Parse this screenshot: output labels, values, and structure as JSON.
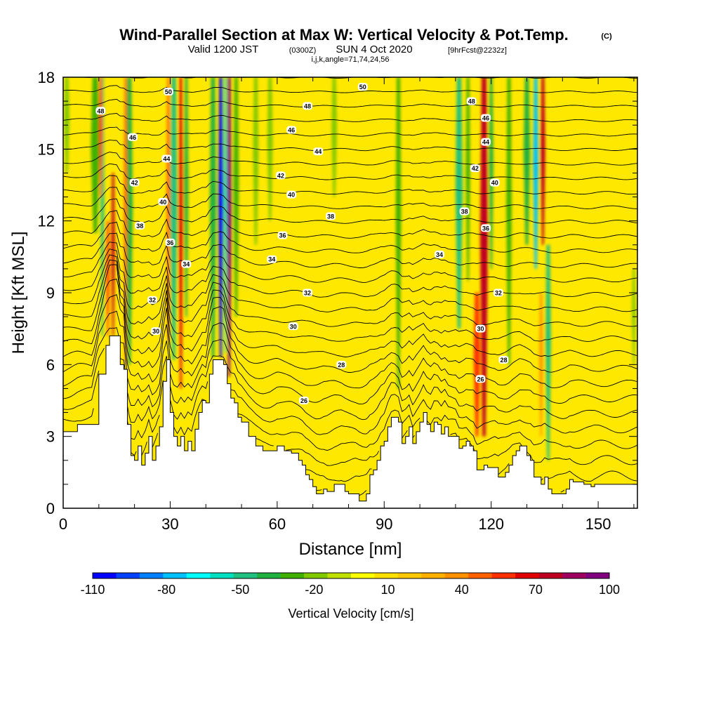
{
  "chart_data": {
    "type": "heatmap",
    "title": "Wind-Parallel Section at Max W: Vertical Velocity & Pot.Temp.",
    "title_suffix": "(C)",
    "subtitle_valid": "Valid 1200 JST",
    "subtitle_utc": "(0300Z)",
    "subtitle_date": "SUN 4 Oct 2020",
    "subtitle_fcst": "[9hrFcst@2232z]",
    "subtitle_ijk": "i,j,k,angle=71,74,24,56",
    "xlabel": "Distance [nm]",
    "ylabel": "Height [Kft MSL]",
    "xlim": [
      0,
      161
    ],
    "ylim": [
      0,
      18
    ],
    "x_ticks": [
      "0",
      "30",
      "60",
      "90",
      "120",
      "150"
    ],
    "x_tick_values": [
      0,
      30,
      60,
      90,
      120,
      150
    ],
    "y_ticks": [
      "0",
      "3",
      "6",
      "9",
      "12",
      "15",
      "18"
    ],
    "y_tick_values": [
      0,
      3,
      6,
      9,
      12,
      15,
      18
    ],
    "colorbar": {
      "title": "Vertical Velocity [cm/s]",
      "labels": [
        "-110",
        "-80",
        "-50",
        "-20",
        "10",
        "40",
        "70",
        "100"
      ],
      "label_values": [
        -110,
        -80,
        -50,
        -20,
        10,
        40,
        70,
        100
      ],
      "colors": [
        "#0000ff",
        "#0040ff",
        "#0080ff",
        "#00c0ff",
        "#00ffff",
        "#00e0c0",
        "#20c080",
        "#20b040",
        "#40b000",
        "#80c800",
        "#c0e000",
        "#ffff00",
        "#ffe000",
        "#ffc800",
        "#ffb000",
        "#ff9000",
        "#ff6000",
        "#ff3000",
        "#e00000",
        "#c00020",
        "#a00060",
        "#800080"
      ]
    },
    "terrain_kft": [
      [
        0,
        3.2
      ],
      [
        4,
        3.5
      ],
      [
        8,
        3.5
      ],
      [
        10,
        5.6
      ],
      [
        12,
        6.8
      ],
      [
        13,
        7.2
      ],
      [
        15,
        7.2
      ],
      [
        16,
        6.0
      ],
      [
        17,
        5.8
      ],
      [
        18,
        3.5
      ],
      [
        19,
        2.2
      ],
      [
        20,
        2.0
      ],
      [
        21,
        2.6
      ],
      [
        22,
        1.8
      ],
      [
        23,
        2.3
      ],
      [
        24,
        3.0
      ],
      [
        25,
        2.0
      ],
      [
        26,
        2.6
      ],
      [
        27,
        3.4
      ],
      [
        28,
        5.3
      ],
      [
        29,
        6.2
      ],
      [
        30,
        4.0
      ],
      [
        31,
        3.0
      ],
      [
        32,
        2.6
      ],
      [
        33,
        3.0
      ],
      [
        34,
        2.4
      ],
      [
        35,
        2.8
      ],
      [
        36,
        2.4
      ],
      [
        37,
        3.3
      ],
      [
        38,
        4.0
      ],
      [
        39,
        4.5
      ],
      [
        40,
        4.4
      ],
      [
        41,
        5.6
      ],
      [
        42,
        6.2
      ],
      [
        44,
        6.2
      ],
      [
        45,
        6.0
      ],
      [
        46,
        5.2
      ],
      [
        47,
        4.6
      ],
      [
        48,
        4.4
      ],
      [
        49,
        3.8
      ],
      [
        50,
        3.6
      ],
      [
        52,
        3.0
      ],
      [
        54,
        2.6
      ],
      [
        56,
        2.4
      ],
      [
        58,
        2.4
      ],
      [
        60,
        2.6
      ],
      [
        62,
        2.4
      ],
      [
        64,
        2.3
      ],
      [
        66,
        2.0
      ],
      [
        67,
        1.8
      ],
      [
        68,
        1.4
      ],
      [
        69,
        1.2
      ],
      [
        70,
        0.9
      ],
      [
        71,
        0.6
      ],
      [
        72,
        0.6
      ],
      [
        73,
        0.8
      ],
      [
        74,
        0.7
      ],
      [
        76,
        1.0
      ],
      [
        78,
        1.0
      ],
      [
        79,
        0.7
      ],
      [
        80,
        0.6
      ],
      [
        82,
        0.6
      ],
      [
        83,
        0.3
      ],
      [
        84,
        0.3
      ],
      [
        85,
        0.6
      ],
      [
        86,
        1.4
      ],
      [
        87,
        1.6
      ],
      [
        88,
        2.0
      ],
      [
        89,
        2.6
      ],
      [
        90,
        2.8
      ],
      [
        91,
        3.4
      ],
      [
        92,
        3.8
      ],
      [
        93,
        3.8
      ],
      [
        94,
        3.6
      ],
      [
        95,
        2.7
      ],
      [
        96,
        3.0
      ],
      [
        97,
        3.4
      ],
      [
        98,
        2.7
      ],
      [
        99,
        3.2
      ],
      [
        100,
        3.6
      ],
      [
        101,
        4.0
      ],
      [
        102,
        3.5
      ],
      [
        103,
        3.2
      ],
      [
        104,
        3.6
      ],
      [
        105,
        3.5
      ],
      [
        106,
        3.1
      ],
      [
        107,
        3.4
      ],
      [
        108,
        3.0
      ],
      [
        110,
        3.0
      ],
      [
        111,
        2.5
      ],
      [
        112,
        2.6
      ],
      [
        113,
        2.8
      ],
      [
        114,
        2.6
      ],
      [
        115,
        2.4
      ],
      [
        116,
        1.6
      ],
      [
        118,
        1.8
      ],
      [
        119,
        1.7
      ],
      [
        121,
        1.7
      ],
      [
        122,
        1.3
      ],
      [
        124,
        1.5
      ],
      [
        125,
        1.8
      ],
      [
        126,
        2.2
      ],
      [
        127,
        2.4
      ],
      [
        128,
        2.6
      ],
      [
        130,
        2.2
      ],
      [
        131,
        2.0
      ],
      [
        132,
        1.3
      ],
      [
        134,
        1.0
      ],
      [
        135,
        1.3
      ],
      [
        136,
        0.8
      ],
      [
        137,
        0.6
      ],
      [
        140,
        0.6
      ],
      [
        141,
        0.8
      ],
      [
        142,
        1.2
      ],
      [
        143,
        1.1
      ],
      [
        146,
        1.0
      ],
      [
        148,
        0.9
      ],
      [
        149,
        1.0
      ],
      [
        161,
        1.0
      ]
    ],
    "vertical_velocity_bands": [
      {
        "x": 9,
        "top_kft": 18,
        "bottom_kft": 11.5,
        "w": 2.5,
        "value": -30
      },
      {
        "x": 11,
        "top_kft": 18,
        "bottom_kft": 7.2,
        "w": 1.0,
        "value": -50
      },
      {
        "x": 12.5,
        "top_kft": 12,
        "bottom_kft": 7.2,
        "w": 0.9,
        "value": 55
      },
      {
        "x": 14,
        "top_kft": 14,
        "bottom_kft": 7.2,
        "w": 1.0,
        "value": 80
      },
      {
        "x": 10.5,
        "top_kft": 18,
        "bottom_kft": 13,
        "w": 1.0,
        "value": 55
      },
      {
        "x": 18.5,
        "top_kft": 18,
        "bottom_kft": 6.0,
        "w": 2.0,
        "value": -40
      },
      {
        "x": 17.5,
        "top_kft": 18,
        "bottom_kft": 6.0,
        "w": 0.9,
        "value": 50
      },
      {
        "x": 31,
        "top_kft": 18,
        "bottom_kft": 6.2,
        "w": 2.0,
        "value": -45
      },
      {
        "x": 33,
        "top_kft": 18,
        "bottom_kft": 5.0,
        "w": 1.2,
        "value": 70
      },
      {
        "x": 29.5,
        "top_kft": 18,
        "bottom_kft": 7.0,
        "w": 1.0,
        "value": 45
      },
      {
        "x": 34.5,
        "top_kft": 18,
        "bottom_kft": 8.0,
        "w": 1.2,
        "value": -35
      },
      {
        "x": 42,
        "top_kft": 18,
        "bottom_kft": 6.3,
        "w": 1.8,
        "value": -40
      },
      {
        "x": 44.2,
        "top_kft": 18,
        "bottom_kft": 6.3,
        "w": 1.4,
        "value": -110
      },
      {
        "x": 46.5,
        "top_kft": 18,
        "bottom_kft": 5.5,
        "w": 1.4,
        "value": 95
      },
      {
        "x": 45.5,
        "top_kft": 18,
        "bottom_kft": 6.5,
        "w": 0.8,
        "value": -60
      },
      {
        "x": 48.5,
        "top_kft": 18,
        "bottom_kft": 8.0,
        "w": 1.5,
        "value": -25
      },
      {
        "x": 54,
        "top_kft": 18,
        "bottom_kft": 11.0,
        "w": 1.5,
        "value": -22
      },
      {
        "x": 58,
        "top_kft": 18,
        "bottom_kft": 12.0,
        "w": 1.5,
        "value": -22
      },
      {
        "x": 76,
        "top_kft": 18,
        "bottom_kft": 13.0,
        "w": 1.5,
        "value": -22
      },
      {
        "x": 94,
        "top_kft": 18,
        "bottom_kft": 5.0,
        "w": 1.5,
        "value": -25
      },
      {
        "x": 111,
        "top_kft": 18,
        "bottom_kft": 7.5,
        "w": 2.0,
        "value": -45
      },
      {
        "x": 113.5,
        "top_kft": 18,
        "bottom_kft": 9.5,
        "w": 1.2,
        "value": -30
      },
      {
        "x": 118,
        "top_kft": 18,
        "bottom_kft": 3.0,
        "w": 2.2,
        "value": 75
      },
      {
        "x": 120,
        "top_kft": 18,
        "bottom_kft": 10.0,
        "w": 1.2,
        "value": -40
      },
      {
        "x": 116,
        "top_kft": 9,
        "bottom_kft": 3.0,
        "w": 1.8,
        "value": 55
      },
      {
        "x": 125,
        "top_kft": 18,
        "bottom_kft": 6.0,
        "w": 1.5,
        "value": -30
      },
      {
        "x": 130,
        "top_kft": 18,
        "bottom_kft": 11.0,
        "w": 1.8,
        "value": -35
      },
      {
        "x": 132.5,
        "top_kft": 18,
        "bottom_kft": 10.0,
        "w": 1.5,
        "value": -75
      },
      {
        "x": 134.5,
        "top_kft": 18,
        "bottom_kft": 11.0,
        "w": 1.3,
        "value": 80
      },
      {
        "x": 136,
        "top_kft": 11,
        "bottom_kft": 2.0,
        "w": 1.5,
        "value": -45
      },
      {
        "x": 134,
        "top_kft": 9,
        "bottom_kft": 3.0,
        "w": 1.0,
        "value": 40
      },
      {
        "x": 1,
        "top_kft": 18,
        "bottom_kft": 14,
        "w": 1.5,
        "value": -22
      },
      {
        "x": 160,
        "top_kft": 10,
        "bottom_kft": 6,
        "w": 1.0,
        "value": -22
      }
    ],
    "contour_labels": [
      {
        "text": "50",
        "x": 29.5,
        "y": 17.4
      },
      {
        "text": "50",
        "x": 84,
        "y": 17.6
      },
      {
        "text": "48",
        "x": 10.5,
        "y": 16.6
      },
      {
        "text": "48",
        "x": 68.5,
        "y": 16.8
      },
      {
        "text": "48",
        "x": 114.5,
        "y": 17.0
      },
      {
        "text": "46",
        "x": 19.5,
        "y": 15.5
      },
      {
        "text": "46",
        "x": 64,
        "y": 15.8
      },
      {
        "text": "46",
        "x": 118.5,
        "y": 16.3
      },
      {
        "text": "44",
        "x": 29,
        "y": 14.6
      },
      {
        "text": "44",
        "x": 71.5,
        "y": 14.9
      },
      {
        "text": "44",
        "x": 118.5,
        "y": 15.3
      },
      {
        "text": "42",
        "x": 20,
        "y": 13.6
      },
      {
        "text": "42",
        "x": 61,
        "y": 13.9
      },
      {
        "text": "42",
        "x": 115.5,
        "y": 14.2
      },
      {
        "text": "40",
        "x": 28,
        "y": 12.8
      },
      {
        "text": "40",
        "x": 64,
        "y": 13.1
      },
      {
        "text": "40",
        "x": 121,
        "y": 13.6
      },
      {
        "text": "38",
        "x": 21.5,
        "y": 11.8
      },
      {
        "text": "38",
        "x": 75,
        "y": 12.2
      },
      {
        "text": "38",
        "x": 112.5,
        "y": 12.4
      },
      {
        "text": "36",
        "x": 30,
        "y": 11.1
      },
      {
        "text": "36",
        "x": 61.5,
        "y": 11.4
      },
      {
        "text": "36",
        "x": 118.5,
        "y": 11.7
      },
      {
        "text": "34",
        "x": 34.5,
        "y": 10.2
      },
      {
        "text": "34",
        "x": 58.5,
        "y": 10.4
      },
      {
        "text": "34",
        "x": 105.5,
        "y": 10.6
      },
      {
        "text": "32",
        "x": 25,
        "y": 8.7
      },
      {
        "text": "32",
        "x": 68.5,
        "y": 9.0
      },
      {
        "text": "32",
        "x": 122,
        "y": 9.0
      },
      {
        "text": "30",
        "x": 26,
        "y": 7.4
      },
      {
        "text": "30",
        "x": 64.5,
        "y": 7.6
      },
      {
        "text": "30",
        "x": 117,
        "y": 7.5
      },
      {
        "text": "28",
        "x": 78,
        "y": 6.0
      },
      {
        "text": "28",
        "x": 123.5,
        "y": 6.2
      },
      {
        "text": "26",
        "x": 67.5,
        "y": 4.5
      },
      {
        "text": "26",
        "x": 117,
        "y": 5.4
      }
    ]
  }
}
